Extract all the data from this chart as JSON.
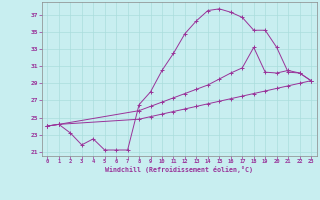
{
  "xlabel": "Windchill (Refroidissement éolien,°C)",
  "background_color": "#c8eef0",
  "line_color": "#993399",
  "grid_color": "#aadddd",
  "ylim": [
    20.5,
    38.5
  ],
  "xlim": [
    -0.5,
    23.5
  ],
  "yticks": [
    21,
    23,
    25,
    27,
    29,
    31,
    33,
    35,
    37
  ],
  "xticks": [
    0,
    1,
    2,
    3,
    4,
    5,
    6,
    7,
    8,
    9,
    10,
    11,
    12,
    13,
    14,
    15,
    16,
    17,
    18,
    19,
    20,
    21,
    22,
    23
  ],
  "curve1_x": [
    0,
    1,
    2,
    3,
    4,
    5,
    6,
    7,
    8,
    9,
    10,
    11,
    12,
    13,
    14,
    15,
    16,
    17,
    18,
    19,
    20,
    21,
    22,
    23
  ],
  "curve1_y": [
    24.0,
    24.2,
    23.2,
    21.8,
    22.5,
    21.2,
    21.2,
    21.2,
    26.5,
    28.0,
    30.5,
    32.5,
    34.8,
    36.3,
    37.5,
    37.7,
    37.3,
    36.7,
    35.2,
    35.2,
    33.2,
    30.3,
    30.2,
    29.3
  ],
  "curve2_x": [
    0,
    1,
    8,
    9,
    10,
    11,
    12,
    13,
    14,
    15,
    16,
    17,
    18,
    19,
    20,
    21,
    22,
    23
  ],
  "curve2_y": [
    24.0,
    24.2,
    24.8,
    25.1,
    25.4,
    25.7,
    26.0,
    26.3,
    26.6,
    26.9,
    27.2,
    27.5,
    27.8,
    28.1,
    28.4,
    28.7,
    29.0,
    29.3
  ],
  "curve3_x": [
    0,
    1,
    8,
    9,
    10,
    11,
    12,
    13,
    14,
    15,
    16,
    17,
    18,
    19,
    20,
    21,
    22,
    23
  ],
  "curve3_y": [
    24.0,
    24.2,
    25.8,
    26.3,
    26.8,
    27.3,
    27.8,
    28.3,
    28.8,
    29.5,
    30.2,
    30.8,
    33.2,
    30.3,
    30.2,
    30.5,
    30.2,
    29.3
  ]
}
